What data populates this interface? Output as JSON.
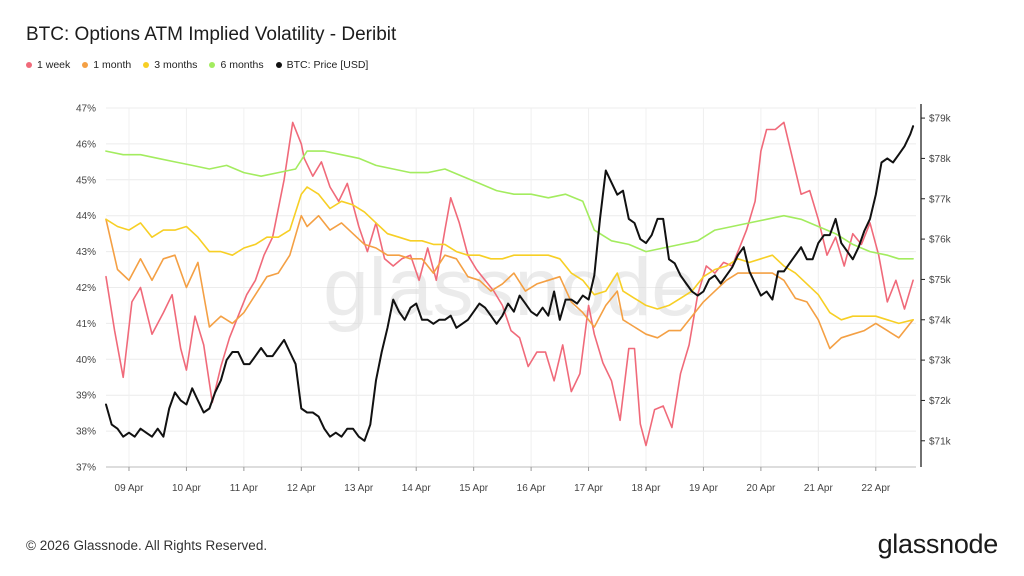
{
  "header": {
    "title": "BTC: Options ATM Implied Volatility - Deribit"
  },
  "footer": {
    "copyright": "© 2026 Glassnode. All Rights Reserved.",
    "brand": "glassnode"
  },
  "watermark": "glassnode",
  "chart_data": {
    "type": "line",
    "x_ticks": [
      "09 Apr",
      "10 Apr",
      "11 Apr",
      "12 Apr",
      "13 Apr",
      "14 Apr",
      "15 Apr",
      "16 Apr",
      "17 Apr",
      "18 Apr",
      "19 Apr",
      "20 Apr",
      "21 Apr",
      "22 Apr"
    ],
    "x_range": [
      8.6,
      22.7
    ],
    "y_left": {
      "ticks": [
        "37%",
        "38%",
        "39%",
        "40%",
        "41%",
        "42%",
        "43%",
        "44%",
        "45%",
        "46%",
        "47%"
      ],
      "range": [
        37,
        47
      ]
    },
    "y_right": {
      "ticks": [
        "$71k",
        "$72k",
        "$73k",
        "$74k",
        "$75k",
        "$76k",
        "$77k",
        "$78k",
        "$79k"
      ],
      "range": [
        70.35,
        79.25
      ]
    },
    "legend_position": "top-left",
    "grid": true,
    "series": [
      {
        "name": "1 week",
        "color": "#f06a7a",
        "axis": "left",
        "x": [
          8.6,
          8.75,
          8.9,
          9.05,
          9.2,
          9.4,
          9.6,
          9.75,
          9.9,
          10.0,
          10.15,
          10.3,
          10.45,
          10.6,
          10.75,
          10.9,
          11.05,
          11.2,
          11.35,
          11.5,
          11.7,
          11.85,
          12.0,
          12.05,
          12.2,
          12.35,
          12.5,
          12.65,
          12.8,
          13.0,
          13.15,
          13.3,
          13.45,
          13.6,
          13.75,
          13.9,
          14.05,
          14.2,
          14.35,
          14.5,
          14.6,
          14.75,
          14.9,
          15.05,
          15.2,
          15.35,
          15.5,
          15.65,
          15.8,
          15.95,
          16.1,
          16.25,
          16.4,
          16.55,
          16.7,
          16.85,
          17.0,
          17.1,
          17.25,
          17.4,
          17.55,
          17.7,
          17.8,
          17.9,
          18.0,
          18.15,
          18.3,
          18.45,
          18.6,
          18.75,
          18.9,
          19.05,
          19.2,
          19.35,
          19.5,
          19.65,
          19.75,
          19.9,
          20.0,
          20.1,
          20.25,
          20.4,
          20.55,
          20.7,
          20.85,
          21.0,
          21.15,
          21.3,
          21.45,
          21.6,
          21.75,
          21.9,
          22.05,
          22.2,
          22.35,
          22.5,
          22.65
        ],
        "values": [
          42.3,
          40.8,
          39.5,
          41.6,
          42.0,
          40.7,
          41.3,
          41.8,
          40.3,
          39.7,
          41.2,
          40.4,
          38.8,
          39.8,
          40.6,
          41.2,
          41.8,
          42.2,
          42.9,
          43.4,
          45.0,
          46.6,
          46.0,
          45.6,
          45.1,
          45.5,
          44.8,
          44.4,
          44.9,
          43.7,
          43.0,
          43.8,
          42.8,
          42.6,
          42.8,
          42.9,
          42.2,
          43.1,
          42.2,
          43.6,
          44.5,
          43.8,
          42.9,
          42.5,
          42.2,
          41.9,
          41.5,
          40.8,
          40.6,
          39.8,
          40.2,
          40.2,
          39.4,
          40.4,
          39.1,
          39.6,
          41.5,
          40.7,
          39.9,
          39.4,
          38.3,
          40.3,
          40.3,
          38.2,
          37.6,
          38.6,
          38.7,
          38.1,
          39.6,
          40.4,
          41.8,
          42.6,
          42.4,
          42.7,
          42.6,
          43.2,
          43.6,
          44.4,
          45.8,
          46.4,
          46.4,
          46.6,
          45.6,
          44.6,
          44.7,
          43.9,
          42.9,
          43.4,
          42.6,
          43.5,
          43.2,
          43.8,
          42.9,
          41.6,
          42.2,
          41.4,
          42.2
        ]
      },
      {
        "name": "1 month",
        "color": "#f4a044",
        "axis": "left",
        "x": [
          8.6,
          8.8,
          9.0,
          9.2,
          9.4,
          9.6,
          9.8,
          10.0,
          10.2,
          10.4,
          10.6,
          10.8,
          11.0,
          11.2,
          11.4,
          11.6,
          11.8,
          12.0,
          12.1,
          12.3,
          12.5,
          12.7,
          12.9,
          13.1,
          13.3,
          13.5,
          13.7,
          13.9,
          14.1,
          14.3,
          14.5,
          14.7,
          14.9,
          15.1,
          15.3,
          15.5,
          15.7,
          15.9,
          16.1,
          16.3,
          16.5,
          16.7,
          16.9,
          17.1,
          17.3,
          17.5,
          17.6,
          17.8,
          18.0,
          18.2,
          18.4,
          18.6,
          18.8,
          19.0,
          19.2,
          19.4,
          19.6,
          19.8,
          20.0,
          20.2,
          20.4,
          20.6,
          20.8,
          21.0,
          21.2,
          21.4,
          21.6,
          21.8,
          22.0,
          22.2,
          22.4,
          22.65
        ],
        "values": [
          43.9,
          42.5,
          42.2,
          42.8,
          42.2,
          42.8,
          42.9,
          42.0,
          42.7,
          40.9,
          41.2,
          41.0,
          41.3,
          41.8,
          42.3,
          42.4,
          42.9,
          44.0,
          43.7,
          44.0,
          43.6,
          43.8,
          43.5,
          43.2,
          43.1,
          42.9,
          42.9,
          42.8,
          42.8,
          42.4,
          42.9,
          42.8,
          42.3,
          42.2,
          41.9,
          42.1,
          42.4,
          41.9,
          42.1,
          42.2,
          42.3,
          41.6,
          41.3,
          40.9,
          41.5,
          41.9,
          41.1,
          40.9,
          40.7,
          40.6,
          40.8,
          40.8,
          41.2,
          41.6,
          41.9,
          42.2,
          42.4,
          42.4,
          42.4,
          42.4,
          42.2,
          41.7,
          41.6,
          41.1,
          40.3,
          40.6,
          40.7,
          40.8,
          41.0,
          40.8,
          40.6,
          41.1
        ]
      },
      {
        "name": "3 months",
        "color": "#f7cf25",
        "axis": "left",
        "x": [
          8.6,
          8.8,
          9.0,
          9.2,
          9.4,
          9.6,
          9.8,
          10.0,
          10.2,
          10.4,
          10.6,
          10.8,
          11.0,
          11.2,
          11.4,
          11.6,
          11.8,
          12.0,
          12.1,
          12.3,
          12.5,
          12.7,
          12.9,
          13.1,
          13.3,
          13.5,
          13.7,
          13.9,
          14.1,
          14.3,
          14.5,
          14.7,
          14.9,
          15.1,
          15.3,
          15.5,
          15.7,
          15.9,
          16.1,
          16.3,
          16.5,
          16.7,
          16.9,
          17.1,
          17.3,
          17.5,
          17.6,
          17.8,
          18.0,
          18.2,
          18.4,
          18.6,
          18.8,
          19.0,
          19.2,
          19.4,
          19.6,
          19.8,
          20.0,
          20.2,
          20.4,
          20.6,
          20.8,
          21.0,
          21.2,
          21.4,
          21.6,
          21.8,
          22.0,
          22.2,
          22.4,
          22.65
        ],
        "values": [
          43.9,
          43.7,
          43.6,
          43.8,
          43.4,
          43.6,
          43.6,
          43.7,
          43.4,
          43.0,
          43.0,
          42.9,
          43.1,
          43.2,
          43.4,
          43.4,
          43.6,
          44.6,
          44.8,
          44.6,
          44.2,
          44.4,
          44.3,
          44.1,
          43.8,
          43.5,
          43.4,
          43.3,
          43.3,
          43.2,
          43.2,
          43.0,
          42.9,
          42.9,
          42.8,
          42.8,
          42.9,
          42.9,
          42.9,
          42.9,
          42.8,
          42.4,
          42.2,
          41.8,
          41.9,
          42.4,
          41.9,
          41.7,
          41.5,
          41.4,
          41.5,
          41.7,
          41.9,
          42.3,
          42.5,
          42.6,
          42.8,
          42.7,
          42.8,
          42.9,
          42.6,
          42.4,
          42.1,
          41.8,
          41.3,
          41.1,
          41.2,
          41.2,
          41.2,
          41.1,
          41.0,
          41.1
        ]
      },
      {
        "name": "6 months",
        "color": "#a3ec5f",
        "axis": "left",
        "x": [
          8.6,
          8.9,
          9.2,
          9.5,
          9.8,
          10.1,
          10.4,
          10.7,
          11.0,
          11.3,
          11.6,
          11.9,
          12.1,
          12.4,
          12.7,
          13.0,
          13.3,
          13.6,
          13.9,
          14.2,
          14.5,
          14.8,
          15.1,
          15.4,
          15.7,
          16.0,
          16.3,
          16.6,
          16.9,
          17.1,
          17.4,
          17.7,
          18.0,
          18.3,
          18.6,
          18.9,
          19.2,
          19.5,
          19.8,
          20.1,
          20.4,
          20.7,
          21.0,
          21.3,
          21.6,
          21.9,
          22.2,
          22.4,
          22.65
        ],
        "values": [
          45.8,
          45.7,
          45.7,
          45.6,
          45.5,
          45.4,
          45.3,
          45.4,
          45.2,
          45.1,
          45.2,
          45.3,
          45.8,
          45.8,
          45.7,
          45.6,
          45.4,
          45.3,
          45.2,
          45.2,
          45.3,
          45.1,
          44.9,
          44.7,
          44.6,
          44.6,
          44.5,
          44.6,
          44.4,
          43.6,
          43.3,
          43.2,
          43.0,
          43.1,
          43.2,
          43.3,
          43.6,
          43.7,
          43.8,
          43.9,
          44.0,
          43.9,
          43.7,
          43.5,
          43.2,
          43.0,
          42.9,
          42.8,
          42.8
        ]
      },
      {
        "name": "BTC: Price [USD]",
        "color": "#111111",
        "axis": "right",
        "x": [
          8.6,
          8.7,
          8.8,
          8.9,
          9.0,
          9.1,
          9.2,
          9.3,
          9.4,
          9.5,
          9.6,
          9.7,
          9.8,
          9.9,
          10.0,
          10.1,
          10.2,
          10.3,
          10.4,
          10.5,
          10.6,
          10.7,
          10.8,
          10.9,
          11.0,
          11.1,
          11.2,
          11.3,
          11.4,
          11.5,
          11.6,
          11.7,
          11.8,
          11.9,
          12.0,
          12.1,
          12.2,
          12.3,
          12.4,
          12.5,
          12.6,
          12.7,
          12.8,
          12.9,
          13.0,
          13.1,
          13.2,
          13.3,
          13.4,
          13.5,
          13.6,
          13.7,
          13.8,
          13.9,
          14.0,
          14.1,
          14.2,
          14.3,
          14.4,
          14.5,
          14.6,
          14.7,
          14.8,
          14.9,
          15.0,
          15.1,
          15.2,
          15.3,
          15.4,
          15.5,
          15.6,
          15.7,
          15.8,
          15.9,
          16.0,
          16.1,
          16.2,
          16.3,
          16.4,
          16.5,
          16.6,
          16.7,
          16.8,
          16.9,
          17.0,
          17.1,
          17.2,
          17.3,
          17.4,
          17.5,
          17.6,
          17.7,
          17.8,
          17.9,
          18.0,
          18.1,
          18.2,
          18.3,
          18.4,
          18.5,
          18.6,
          18.7,
          18.8,
          18.9,
          19.0,
          19.1,
          19.2,
          19.3,
          19.4,
          19.5,
          19.6,
          19.7,
          19.8,
          19.9,
          20.0,
          20.1,
          20.2,
          20.3,
          20.4,
          20.5,
          20.6,
          20.7,
          20.8,
          20.9,
          21.0,
          21.1,
          21.2,
          21.3,
          21.4,
          21.5,
          21.6,
          21.7,
          21.8,
          21.9,
          22.0,
          22.1,
          22.2,
          22.3,
          22.4,
          22.5,
          22.6,
          22.65
        ],
        "values": [
          71.9,
          71.4,
          71.3,
          71.1,
          71.2,
          71.1,
          71.3,
          71.2,
          71.1,
          71.3,
          71.1,
          71.8,
          72.2,
          72.0,
          71.9,
          72.3,
          72.0,
          71.7,
          71.8,
          72.2,
          72.5,
          73.0,
          73.2,
          73.2,
          72.9,
          72.9,
          73.1,
          73.3,
          73.1,
          73.1,
          73.3,
          73.5,
          73.2,
          72.9,
          71.8,
          71.7,
          71.7,
          71.6,
          71.3,
          71.1,
          71.2,
          71.1,
          71.3,
          71.3,
          71.1,
          71.0,
          71.4,
          72.5,
          73.2,
          73.8,
          74.5,
          74.2,
          74.0,
          74.3,
          74.4,
          74.0,
          74.0,
          73.9,
          74.0,
          74.0,
          74.1,
          73.8,
          73.9,
          74.0,
          74.2,
          74.4,
          74.3,
          74.1,
          73.9,
          74.1,
          74.4,
          74.2,
          74.6,
          74.4,
          74.2,
          74.1,
          74.3,
          74.1,
          74.7,
          74.0,
          74.5,
          74.5,
          74.4,
          74.6,
          74.5,
          75.1,
          76.5,
          77.7,
          77.4,
          77.1,
          77.2,
          76.5,
          76.4,
          76.0,
          75.9,
          76.1,
          76.5,
          76.5,
          75.5,
          75.4,
          75.1,
          74.9,
          74.7,
          74.6,
          74.7,
          75.0,
          75.1,
          74.9,
          75.1,
          75.3,
          75.6,
          75.8,
          75.2,
          74.9,
          74.6,
          74.7,
          74.5,
          75.2,
          75.2,
          75.4,
          75.6,
          75.8,
          75.5,
          75.5,
          75.9,
          76.1,
          76.1,
          76.5,
          75.9,
          75.7,
          75.5,
          75.8,
          76.2,
          76.5,
          77.1,
          77.9,
          78.0,
          77.9,
          78.1,
          78.3,
          78.6,
          78.8
        ]
      }
    ]
  }
}
